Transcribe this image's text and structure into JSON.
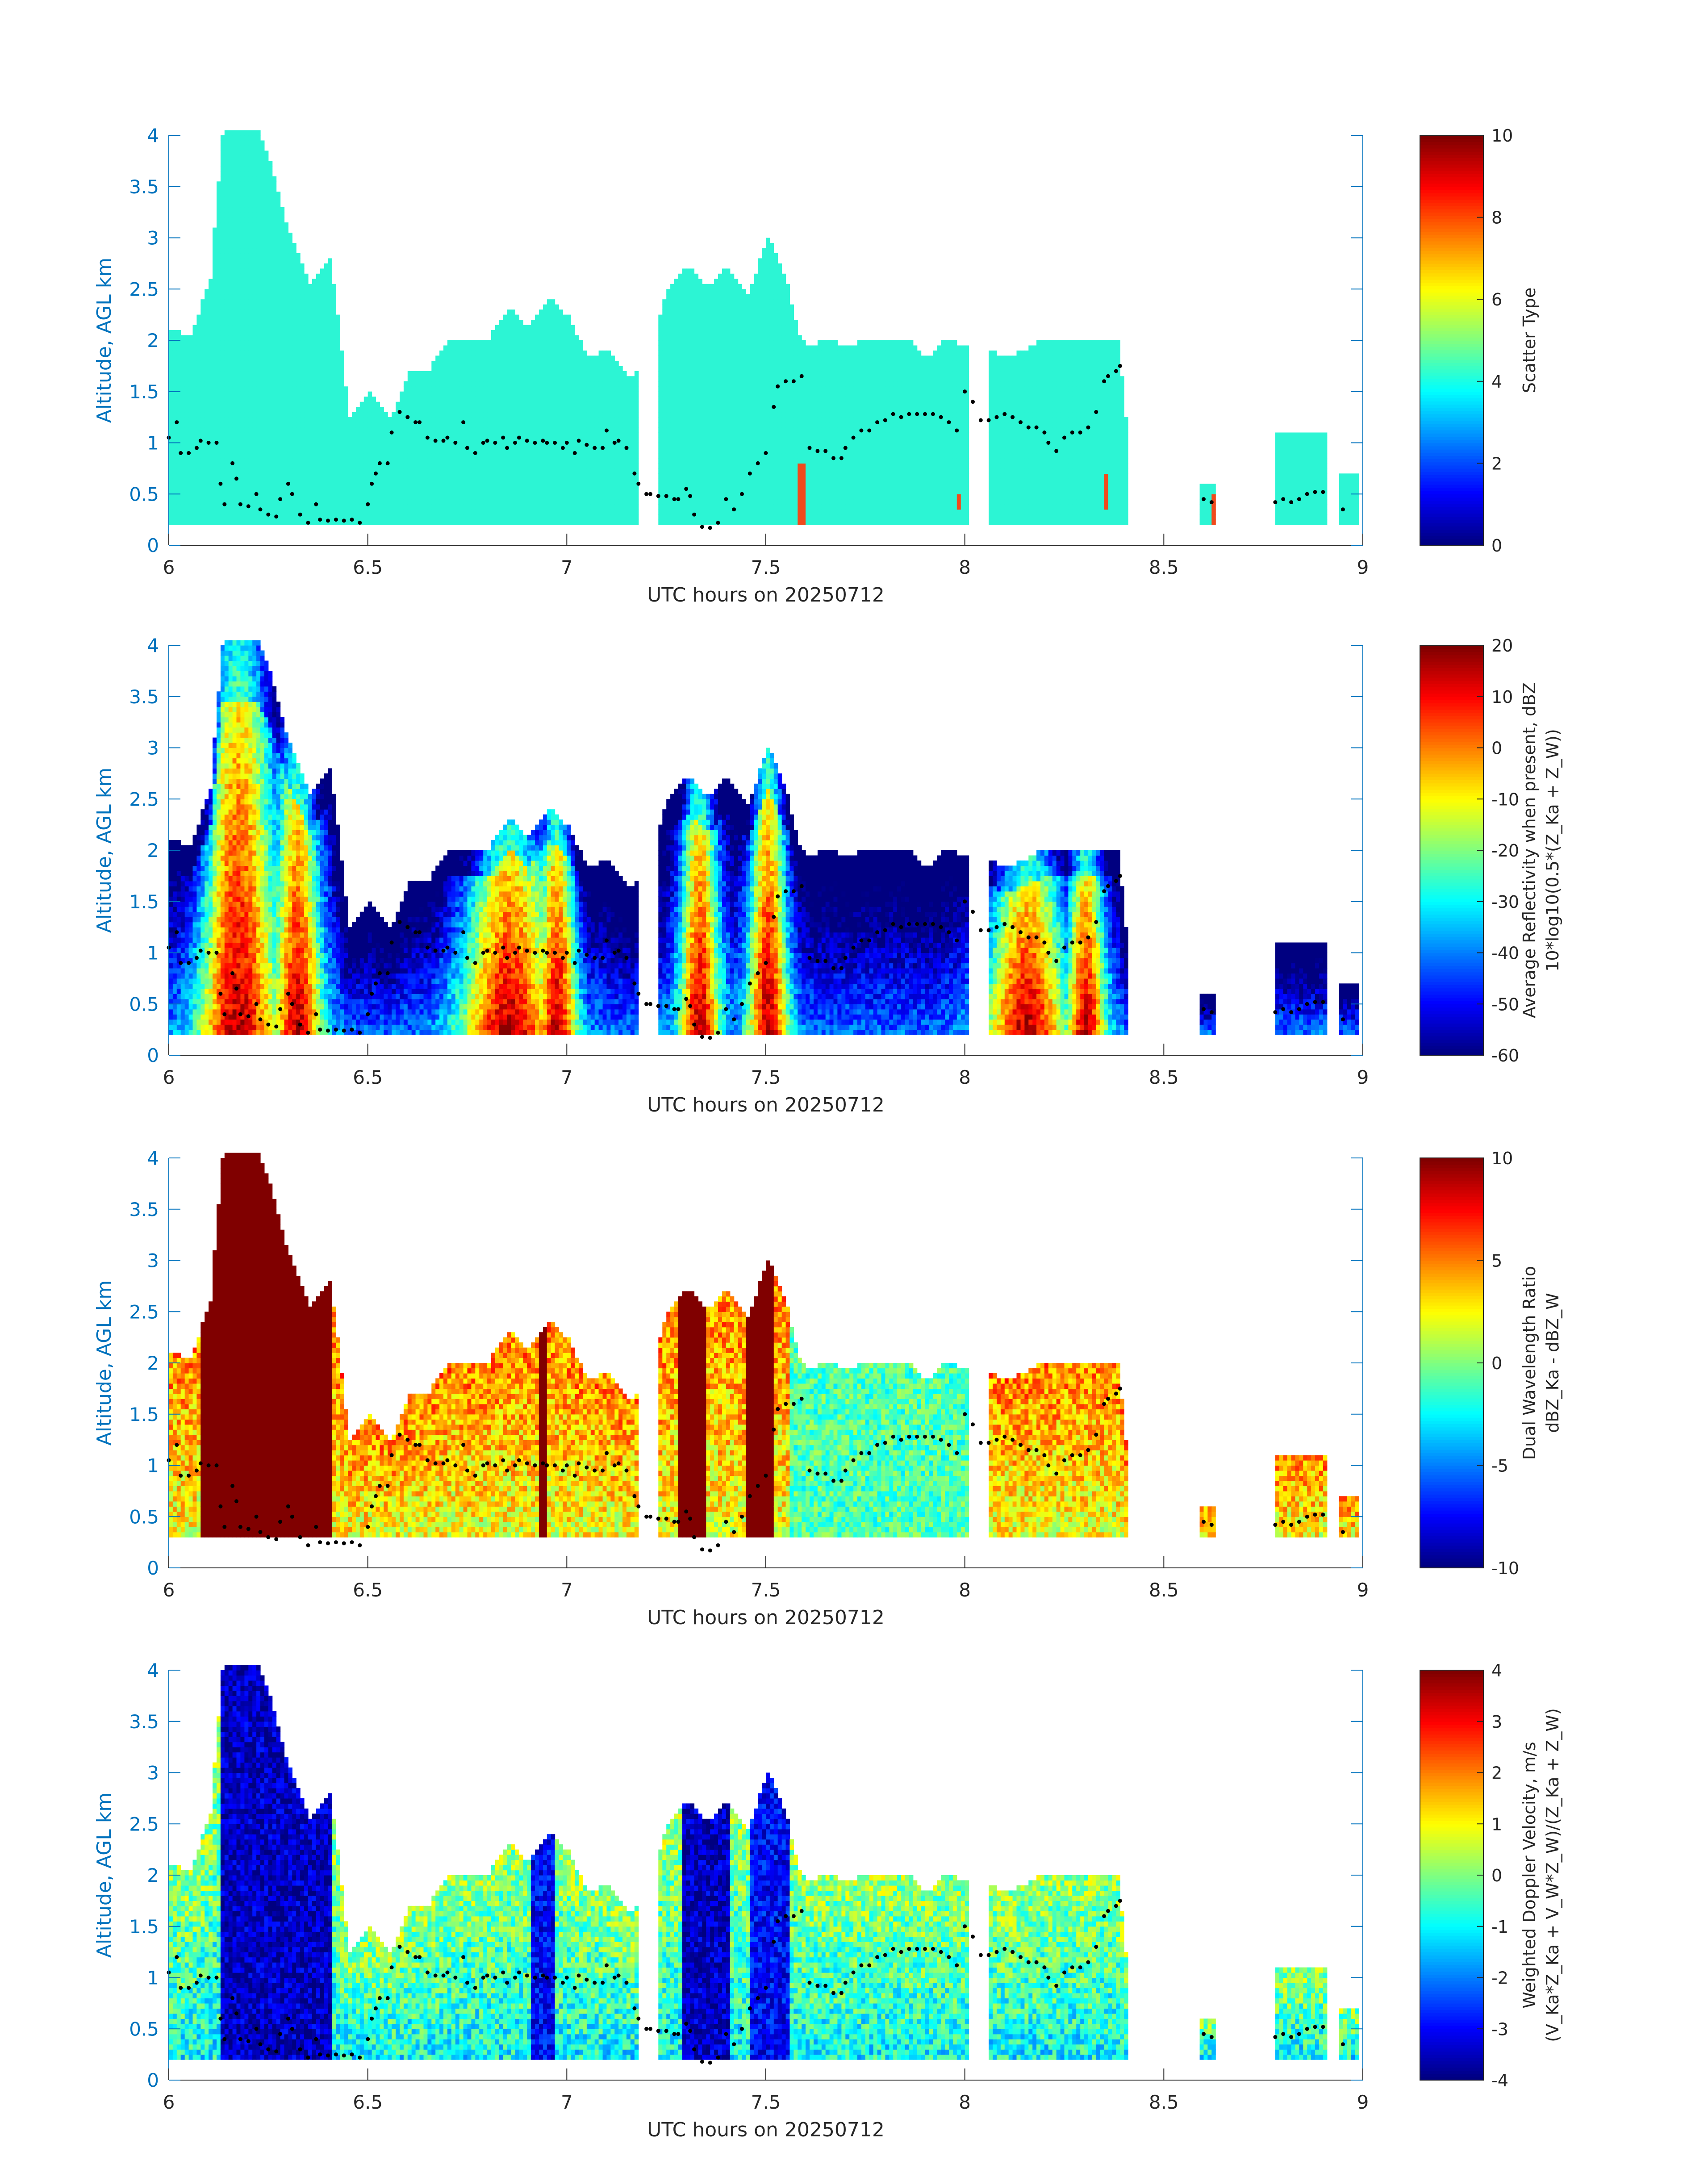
{
  "figure": {
    "x_axis_label": "UTC hours on 20250712",
    "y_axis_label": "Altitude, AGL km"
  },
  "colors": {
    "axis_blue": "#0072bd",
    "text_dark": "#262626",
    "overlay_dots": "#000000",
    "scatter_type_main": "#2cf5d4",
    "scatter_type_alt": "#f04a1c"
  },
  "chart_data": [
    {
      "type": "heatmap",
      "panel": "scatter-type",
      "xlabel": "UTC hours on 20250712",
      "ylabel": "Altitude, AGL km",
      "xlim": [
        6,
        9
      ],
      "ylim": [
        0,
        4
      ],
      "xticks": [
        "6",
        "6.5",
        "7",
        "7.5",
        "8",
        "8.5",
        "9"
      ],
      "yticks": [
        "0",
        "0.5",
        "1",
        "1.5",
        "2",
        "2.5",
        "3",
        "3.5",
        "4"
      ],
      "colorbar": {
        "label": [
          "Scatter Type"
        ],
        "ticks": [
          "0",
          "2",
          "4",
          "6",
          "8",
          "10"
        ],
        "range": [
          0,
          10
        ]
      },
      "cloud_top_km": [
        [
          6.0,
          2.1
        ],
        [
          6.05,
          2.0
        ],
        [
          6.1,
          2.6
        ],
        [
          6.13,
          4.0
        ],
        [
          6.22,
          4.0
        ],
        [
          6.25,
          3.7
        ],
        [
          6.3,
          3.0
        ],
        [
          6.35,
          2.5
        ],
        [
          6.4,
          2.8
        ],
        [
          6.42,
          2.2
        ],
        [
          6.45,
          1.2
        ],
        [
          6.5,
          1.5
        ],
        [
          6.55,
          1.2
        ],
        [
          6.6,
          1.7
        ],
        [
          6.65,
          1.7
        ],
        [
          6.7,
          2.0
        ],
        [
          6.8,
          2.0
        ],
        [
          6.85,
          2.3
        ],
        [
          6.9,
          2.1
        ],
        [
          6.95,
          2.4
        ],
        [
          7.0,
          2.2
        ],
        [
          7.05,
          1.8
        ],
        [
          7.1,
          1.9
        ],
        [
          7.15,
          1.6
        ],
        [
          7.2,
          1.8
        ],
        [
          7.25,
          2.5
        ],
        [
          7.3,
          2.7
        ],
        [
          7.35,
          2.5
        ],
        [
          7.4,
          2.7
        ],
        [
          7.45,
          2.4
        ],
        [
          7.5,
          3.0
        ],
        [
          7.55,
          2.5
        ],
        [
          7.58,
          2.0
        ],
        [
          7.6,
          1.9
        ],
        [
          7.65,
          2.0
        ],
        [
          7.7,
          1.9
        ],
        [
          7.75,
          2.0
        ],
        [
          7.8,
          2.0
        ],
        [
          7.85,
          2.0
        ],
        [
          7.9,
          1.8
        ],
        [
          7.95,
          2.0
        ],
        [
          8.0,
          1.9
        ],
        [
          8.05,
          1.9
        ],
        [
          8.1,
          1.8
        ],
        [
          8.2,
          2.0
        ],
        [
          8.3,
          2.0
        ],
        [
          8.38,
          2.0
        ],
        [
          8.4,
          1.2
        ]
      ],
      "gaps_utc": [
        [
          7.17,
          7.22
        ],
        [
          8.0,
          8.05
        ]
      ],
      "isolated_echoes": [
        [
          8.58,
          8.62,
          0.3,
          0.6
        ],
        [
          8.77,
          8.9,
          0.3,
          1.1
        ],
        [
          8.93,
          8.98,
          0.4,
          0.7
        ]
      ],
      "value_main": 4.5,
      "value_alt": 8.5,
      "alt_columns": [
        [
          7.57,
          7.59,
          0.2,
          0.8
        ],
        [
          7.97,
          7.98,
          0.35,
          0.45
        ],
        [
          8.34,
          8.35,
          0.35,
          0.65
        ],
        [
          8.61,
          8.63,
          0.2,
          0.45
        ],
        [
          8.98,
          9.0,
          0.7,
          0.75
        ]
      ]
    },
    {
      "type": "heatmap",
      "panel": "reflectivity",
      "xlabel": "UTC hours on 20250712",
      "ylabel": "Altitude, AGL km",
      "xlim": [
        6,
        9
      ],
      "ylim": [
        0,
        4
      ],
      "xticks": [
        "6",
        "6.5",
        "7",
        "7.5",
        "8",
        "8.5",
        "9"
      ],
      "yticks": [
        "0",
        "0.5",
        "1",
        "1.5",
        "2",
        "2.5",
        "3",
        "3.5",
        "4"
      ],
      "colorbar": {
        "label": [
          "Average Reflectivity when present, dBZ",
          "10*log10(0.5*(Z_Ka + Z_W))"
        ],
        "ticks": [
          "-60",
          "-50",
          "-40",
          "-30",
          "-20",
          "-10",
          "0",
          "10",
          "20"
        ],
        "range": [
          -60,
          20
        ]
      },
      "cores": [
        {
          "center": 6.17,
          "width": 0.1,
          "peak": 15
        },
        {
          "center": 6.32,
          "width": 0.06,
          "peak": 8
        },
        {
          "center": 6.85,
          "width": 0.12,
          "peak": 8
        },
        {
          "center": 6.97,
          "width": 0.05,
          "peak": 10
        },
        {
          "center": 7.33,
          "width": 0.05,
          "peak": 18
        },
        {
          "center": 7.5,
          "width": 0.05,
          "peak": 12
        },
        {
          "center": 8.15,
          "width": 0.1,
          "peak": 0
        },
        {
          "center": 8.3,
          "width": 0.05,
          "peak": 5
        }
      ]
    },
    {
      "type": "heatmap",
      "panel": "dual-wavelength-ratio",
      "xlabel": "UTC hours on 20250712",
      "ylabel": "Altitude, AGL km",
      "xlim": [
        6,
        9
      ],
      "ylim": [
        0,
        4
      ],
      "xticks": [
        "6",
        "6.5",
        "7",
        "7.5",
        "8",
        "8.5",
        "9"
      ],
      "yticks": [
        "0",
        "0.5",
        "1",
        "1.5",
        "2",
        "2.5",
        "3",
        "3.5",
        "4"
      ],
      "colorbar": {
        "label": [
          "Dual Wavelength Ratio",
          "dBZ_Ka - dBZ_W"
        ],
        "ticks": [
          "-10",
          "-5",
          "0",
          "5",
          "10"
        ],
        "range": [
          -10,
          10
        ]
      },
      "saturated_columns": [
        [
          6.07,
          6.4
        ],
        [
          6.92,
          6.94
        ],
        [
          7.27,
          7.34
        ],
        [
          7.44,
          7.51
        ]
      ]
    },
    {
      "type": "heatmap",
      "panel": "doppler-velocity",
      "xlabel": "UTC hours on 20250712",
      "ylabel": "Altitude, AGL km",
      "xlim": [
        6,
        9
      ],
      "ylim": [
        0,
        4
      ],
      "xticks": [
        "6",
        "6.5",
        "7",
        "7.5",
        "8",
        "8.5",
        "9"
      ],
      "yticks": [
        "0",
        "0.5",
        "1",
        "1.5",
        "2",
        "2.5",
        "3",
        "3.5",
        "4"
      ],
      "colorbar": {
        "label": [
          "Weighted Doppler Velocity, m/s",
          "(V_Ka*Z_Ka + V_W*Z_W)/(Z_Ka + Z_W)"
        ],
        "ticks": [
          "-4",
          "-3",
          "-2",
          "-1",
          "0",
          "1",
          "2",
          "3",
          "4"
        ],
        "range": [
          -4,
          4
        ]
      },
      "fall_cores": [
        [
          6.12,
          6.4,
          -3.5
        ],
        [
          6.9,
          6.96,
          -3.0
        ],
        [
          7.28,
          7.4,
          -3.5
        ],
        [
          7.45,
          7.55,
          -3.0
        ]
      ]
    }
  ],
  "overlay_points_km": [
    [
      6.0,
      1.05
    ],
    [
      6.02,
      1.2
    ],
    [
      6.03,
      0.9
    ],
    [
      6.05,
      0.9
    ],
    [
      6.07,
      0.95
    ],
    [
      6.08,
      1.02
    ],
    [
      6.1,
      1.0
    ],
    [
      6.12,
      1.0
    ],
    [
      6.13,
      0.6
    ],
    [
      6.14,
      0.4
    ],
    [
      6.16,
      0.8
    ],
    [
      6.17,
      0.65
    ],
    [
      6.18,
      0.4
    ],
    [
      6.2,
      0.38
    ],
    [
      6.22,
      0.5
    ],
    [
      6.23,
      0.35
    ],
    [
      6.25,
      0.3
    ],
    [
      6.27,
      0.28
    ],
    [
      6.28,
      0.45
    ],
    [
      6.3,
      0.6
    ],
    [
      6.31,
      0.5
    ],
    [
      6.33,
      0.3
    ],
    [
      6.35,
      0.22
    ],
    [
      6.37,
      0.4
    ],
    [
      6.38,
      0.25
    ],
    [
      6.4,
      0.24
    ],
    [
      6.42,
      0.25
    ],
    [
      6.44,
      0.24
    ],
    [
      6.46,
      0.25
    ],
    [
      6.48,
      0.22
    ],
    [
      6.5,
      0.4
    ],
    [
      6.51,
      0.6
    ],
    [
      6.52,
      0.7
    ],
    [
      6.53,
      0.8
    ],
    [
      6.55,
      0.8
    ],
    [
      6.56,
      1.1
    ],
    [
      6.58,
      1.3
    ],
    [
      6.6,
      1.25
    ],
    [
      6.62,
      1.2
    ],
    [
      6.63,
      1.2
    ],
    [
      6.65,
      1.05
    ],
    [
      6.67,
      1.02
    ],
    [
      6.69,
      1.02
    ],
    [
      6.7,
      1.05
    ],
    [
      6.72,
      1.0
    ],
    [
      6.74,
      1.2
    ],
    [
      6.75,
      0.95
    ],
    [
      6.77,
      0.9
    ],
    [
      6.79,
      1.0
    ],
    [
      6.8,
      1.02
    ],
    [
      6.82,
      1.0
    ],
    [
      6.84,
      1.05
    ],
    [
      6.85,
      0.95
    ],
    [
      6.87,
      1.0
    ],
    [
      6.88,
      1.05
    ],
    [
      6.9,
      1.02
    ],
    [
      6.92,
      1.0
    ],
    [
      6.94,
      1.02
    ],
    [
      6.95,
      1.0
    ],
    [
      6.97,
      1.0
    ],
    [
      6.99,
      0.95
    ],
    [
      7.0,
      1.0
    ],
    [
      7.02,
      0.9
    ],
    [
      7.03,
      1.02
    ],
    [
      7.05,
      0.98
    ],
    [
      7.07,
      0.95
    ],
    [
      7.09,
      0.95
    ],
    [
      7.1,
      1.12
    ],
    [
      7.12,
      1.0
    ],
    [
      7.13,
      1.02
    ],
    [
      7.15,
      0.95
    ],
    [
      7.17,
      0.7
    ],
    [
      7.18,
      0.6
    ],
    [
      7.2,
      0.5
    ],
    [
      7.21,
      0.5
    ],
    [
      7.23,
      0.48
    ],
    [
      7.25,
      0.48
    ],
    [
      7.27,
      0.45
    ],
    [
      7.28,
      0.45
    ],
    [
      7.3,
      0.55
    ],
    [
      7.31,
      0.48
    ],
    [
      7.32,
      0.3
    ],
    [
      7.34,
      0.18
    ],
    [
      7.36,
      0.17
    ],
    [
      7.38,
      0.22
    ],
    [
      7.4,
      0.45
    ],
    [
      7.42,
      0.35
    ],
    [
      7.44,
      0.5
    ],
    [
      7.46,
      0.7
    ],
    [
      7.48,
      0.8
    ],
    [
      7.5,
      0.9
    ],
    [
      7.52,
      1.35
    ],
    [
      7.53,
      1.55
    ],
    [
      7.55,
      1.6
    ],
    [
      7.57,
      1.6
    ],
    [
      7.59,
      1.65
    ],
    [
      7.61,
      0.95
    ],
    [
      7.63,
      0.92
    ],
    [
      7.65,
      0.92
    ],
    [
      7.67,
      0.85
    ],
    [
      7.69,
      0.85
    ],
    [
      7.7,
      0.95
    ],
    [
      7.72,
      1.05
    ],
    [
      7.74,
      1.12
    ],
    [
      7.76,
      1.12
    ],
    [
      7.78,
      1.2
    ],
    [
      7.8,
      1.22
    ],
    [
      7.82,
      1.28
    ],
    [
      7.84,
      1.25
    ],
    [
      7.86,
      1.28
    ],
    [
      7.88,
      1.28
    ],
    [
      7.9,
      1.28
    ],
    [
      7.92,
      1.28
    ],
    [
      7.94,
      1.25
    ],
    [
      7.96,
      1.2
    ],
    [
      7.98,
      1.12
    ],
    [
      8.0,
      1.5
    ],
    [
      8.02,
      1.4
    ],
    [
      8.04,
      1.22
    ],
    [
      8.06,
      1.22
    ],
    [
      8.08,
      1.25
    ],
    [
      8.1,
      1.28
    ],
    [
      8.12,
      1.25
    ],
    [
      8.14,
      1.2
    ],
    [
      8.16,
      1.15
    ],
    [
      8.18,
      1.15
    ],
    [
      8.2,
      1.1
    ],
    [
      8.21,
      1.0
    ],
    [
      8.23,
      0.92
    ],
    [
      8.25,
      1.05
    ],
    [
      8.27,
      1.1
    ],
    [
      8.29,
      1.1
    ],
    [
      8.31,
      1.15
    ],
    [
      8.33,
      1.3
    ],
    [
      8.35,
      1.6
    ],
    [
      8.36,
      1.65
    ],
    [
      8.38,
      1.7
    ],
    [
      8.39,
      1.75
    ],
    [
      8.6,
      0.45
    ],
    [
      8.62,
      0.42
    ],
    [
      8.78,
      0.42
    ],
    [
      8.8,
      0.45
    ],
    [
      8.82,
      0.42
    ],
    [
      8.84,
      0.45
    ],
    [
      8.86,
      0.5
    ],
    [
      8.88,
      0.52
    ],
    [
      8.9,
      0.52
    ],
    [
      8.95,
      0.35
    ]
  ]
}
